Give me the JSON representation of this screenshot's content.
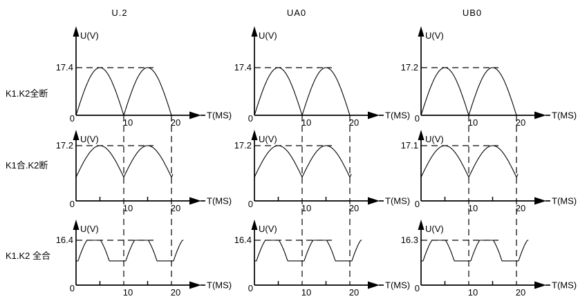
{
  "page": {
    "background": "#ffffff",
    "ink": "#000000"
  },
  "chart_data": {
    "type": "line",
    "grid": "3 columns x 3 rows of voltage waveform panels",
    "columns": [
      "U.2",
      "UA0",
      "UB0"
    ],
    "rows": [
      "K1.K2全断",
      "K1合.K2断",
      "K1.K2 全合"
    ],
    "axis_labels": {
      "y": "U(V)",
      "x": "T(MS)",
      "origin": "0",
      "t10": "10",
      "t20": "20"
    },
    "x_axis": {
      "unit": "MS",
      "ticks": [
        0,
        10,
        20
      ],
      "minor_ticks": [
        5,
        15
      ],
      "shown_range": [
        0,
        25
      ]
    },
    "y_axis": {
      "unit": "V"
    },
    "peak_labels": [
      [
        "17.4",
        "17.4",
        "17.2"
      ],
      [
        "17.2",
        "17.2",
        "17.1"
      ],
      [
        "16.4",
        "16.4",
        "16.3"
      ]
    ],
    "peak_voltages": [
      [
        17.4,
        17.4,
        17.2
      ],
      [
        17.2,
        17.2,
        17.1
      ],
      [
        16.4,
        16.4,
        16.3
      ]
    ],
    "waveforms": [
      {
        "row": "K1.K2全断",
        "shape": "full-wave rectified sine",
        "period_ms": 10,
        "min_fraction_of_peak": 0.0,
        "zeros_at_ms": [
          0,
          10,
          20
        ],
        "peaks_at_ms": [
          5,
          15
        ],
        "t_range_ms": [
          0,
          20
        ]
      },
      {
        "row": "K1合.K2断",
        "shape": "rectified sine riding above zero with cusp valleys",
        "period_ms": 10,
        "min_fraction_of_peak": 0.43,
        "valleys_at_ms": [
          0,
          10,
          20
        ],
        "peaks_at_ms": [
          5,
          15
        ],
        "t_range_ms": [
          0,
          20.3
        ]
      },
      {
        "row": "K1.K2 全合",
        "shape": "sine humps clipped at top with flat plateau between pulses",
        "period_ms": 10,
        "min_fraction_of_peak": 0.54,
        "peak_flat_ms": [
          [
            2.3,
            5.1
          ],
          [
            12.3,
            15.1
          ]
        ],
        "plateaus_ms": [
          [
            7.0,
            10.4
          ],
          [
            17.0,
            22.5
          ]
        ],
        "t_range_ms": [
          0,
          22.5
        ]
      }
    ],
    "dashed_guides": {
      "vertical_at_ms": [
        10,
        20
      ],
      "horizontal_at": "peak voltage level"
    }
  }
}
